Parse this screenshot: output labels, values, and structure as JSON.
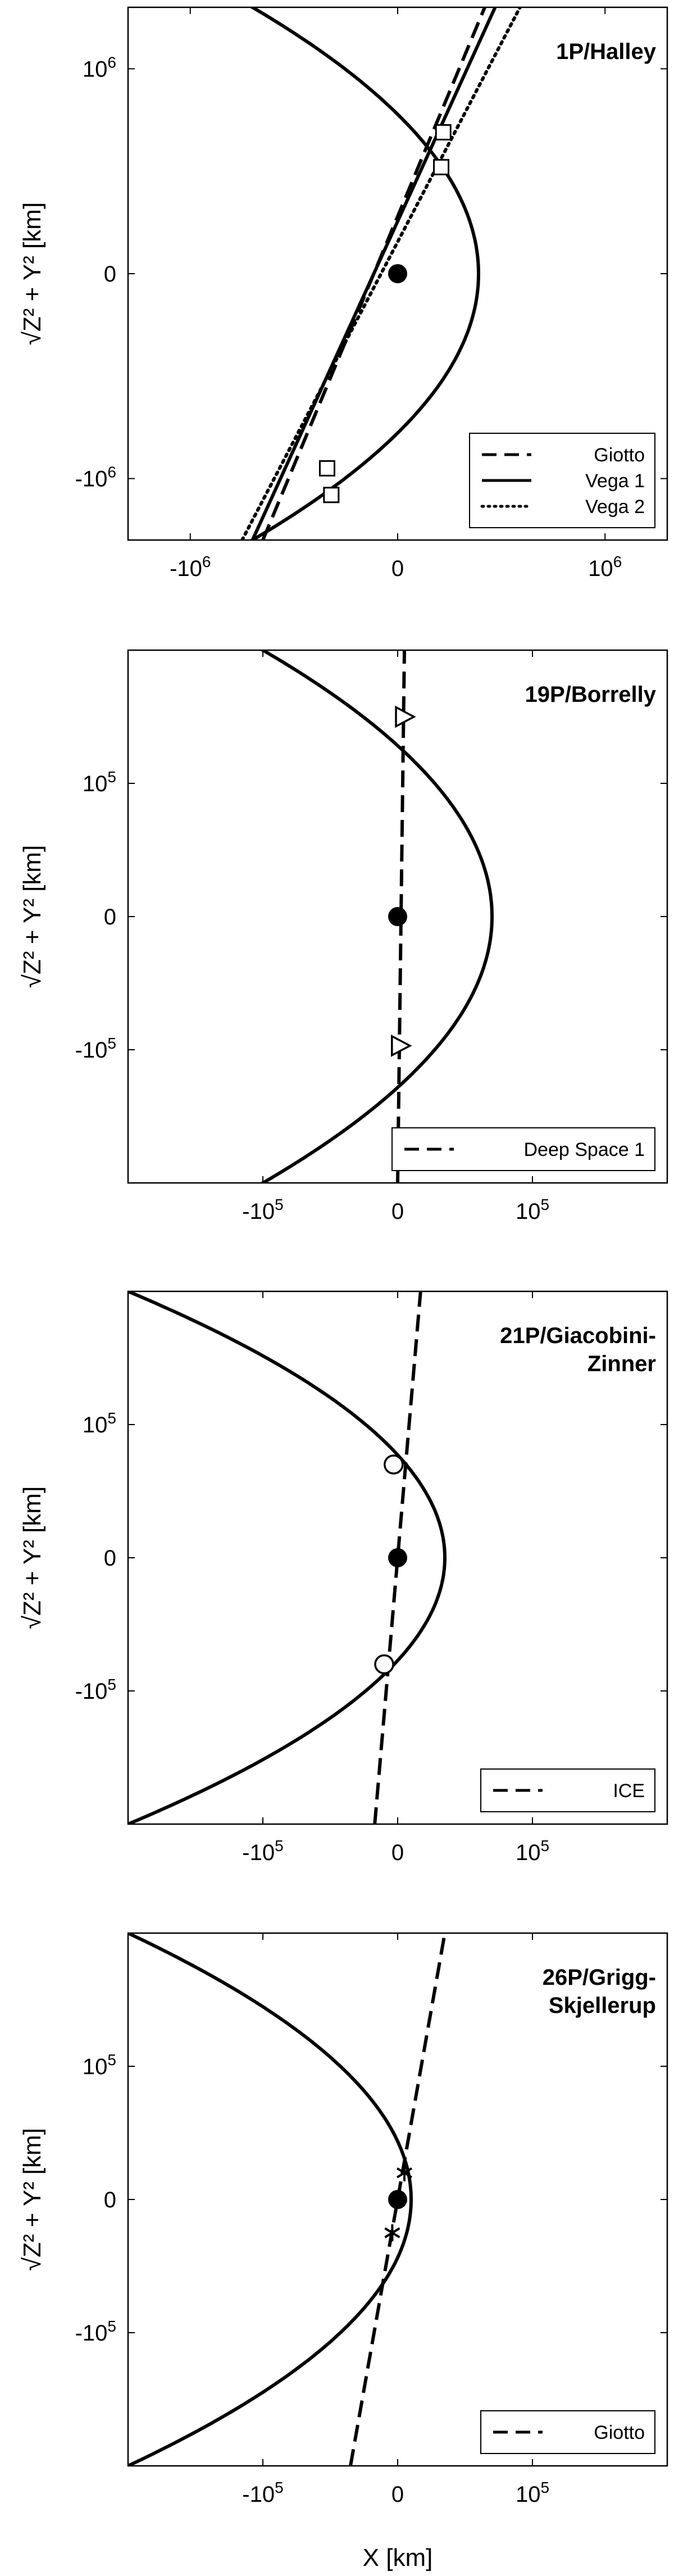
{
  "figure": {
    "xlabel": "X [km]"
  },
  "chart_data": [
    {
      "type": "line",
      "title": "1P/Halley",
      "ylabel": "√Z² + Y² [km]",
      "xlim": [
        -1300000,
        1300000
      ],
      "ylim": [
        -1300000,
        1300000
      ],
      "xticks": [
        {
          "v": -1000000,
          "label": "-10",
          "sup": "6"
        },
        {
          "v": 0,
          "label": "0",
          "sup": ""
        },
        {
          "v": 1000000,
          "label": "10",
          "sup": "6"
        }
      ],
      "yticks": [
        {
          "v": 1000000,
          "label": "10",
          "sup": "6"
        },
        {
          "v": 0,
          "label": "0",
          "sup": ""
        },
        {
          "v": -1000000,
          "label": "-10",
          "sup": "6"
        }
      ],
      "orbit": {
        "vertex": 390000,
        "x_edge": -700000
      },
      "series": [
        {
          "name": "Giotto",
          "style": "dashed",
          "points": [
            [
              -650000,
              -1300000
            ],
            [
              420000,
              1300000
            ]
          ],
          "marker": "square",
          "marker_points": [
            [
              -340000,
              -950000
            ],
            [
              220000,
              690000
            ]
          ]
        },
        {
          "name": "Vega 1",
          "style": "solid",
          "points": [
            [
              -700000,
              -1300000
            ],
            [
              470000,
              1300000
            ]
          ],
          "marker": "square",
          "marker_points": [
            [
              -320000,
              -1080000
            ],
            [
              210000,
              520000
            ]
          ]
        },
        {
          "name": "Vega 2",
          "style": "dotted",
          "points": [
            [
              -750000,
              -1300000
            ],
            [
              590000,
              1300000
            ]
          ],
          "marker": "none",
          "marker_points": []
        }
      ],
      "nucleus": [
        0,
        0
      ]
    },
    {
      "type": "line",
      "title": "19P/Borrelly",
      "ylabel": "√Z² + Y² [km]",
      "xlim": [
        -200000,
        200000
      ],
      "ylim": [
        -200000,
        200000
      ],
      "xticks": [
        {
          "v": -100000,
          "label": "-10",
          "sup": "5"
        },
        {
          "v": 0,
          "label": "0",
          "sup": ""
        },
        {
          "v": 100000,
          "label": "10",
          "sup": "5"
        }
      ],
      "yticks": [
        {
          "v": 100000,
          "label": "10",
          "sup": "5"
        },
        {
          "v": 0,
          "label": "0",
          "sup": ""
        },
        {
          "v": -100000,
          "label": "-10",
          "sup": "5"
        }
      ],
      "orbit": {
        "vertex": 70000,
        "x_edge": -100000
      },
      "series": [
        {
          "name": "Deep Space 1",
          "style": "dashed",
          "points": [
            [
              0,
              -200000
            ],
            [
              5000,
              200000
            ]
          ],
          "marker": "triangle",
          "marker_points": [
            [
              5000,
              150000
            ],
            [
              2000,
              -97000
            ]
          ]
        }
      ],
      "nucleus": [
        0,
        0
      ]
    },
    {
      "type": "line",
      "title": "21P/Giacobini-Zinner",
      "title_lines": [
        "21P/Giacobini-",
        "Zinner"
      ],
      "ylabel": "√Z² + Y² [km]",
      "xlim": [
        -200000,
        200000
      ],
      "ylim": [
        -200000,
        200000
      ],
      "xticks": [
        {
          "v": -100000,
          "label": "-10",
          "sup": "5"
        },
        {
          "v": 0,
          "label": "0",
          "sup": ""
        },
        {
          "v": 100000,
          "label": "10",
          "sup": "5"
        }
      ],
      "yticks": [
        {
          "v": 100000,
          "label": "10",
          "sup": "5"
        },
        {
          "v": 0,
          "label": "0",
          "sup": ""
        },
        {
          "v": -100000,
          "label": "-10",
          "sup": "5"
        }
      ],
      "orbit": {
        "vertex": 35000,
        "x_edge": -200000
      },
      "series": [
        {
          "name": "ICE",
          "style": "dashed",
          "points": [
            [
              -17000,
              -200000
            ],
            [
              17000,
              200000
            ]
          ],
          "marker": "circle",
          "marker_points": [
            [
              -3000,
              70000
            ],
            [
              -10000,
              -80000
            ]
          ]
        }
      ],
      "nucleus": [
        0,
        0
      ]
    },
    {
      "type": "line",
      "title": "26P/Grigg-Skjellerup",
      "title_lines": [
        "26P/Grigg-",
        "Skjellerup"
      ],
      "ylabel": "√Z² + Y² [km]",
      "xlabel": "X [km]",
      "xlim": [
        -200000,
        200000
      ],
      "ylim": [
        -200000,
        200000
      ],
      "xticks": [
        {
          "v": -100000,
          "label": "-10",
          "sup": "5"
        },
        {
          "v": 0,
          "label": "0",
          "sup": ""
        },
        {
          "v": 100000,
          "label": "10",
          "sup": "5"
        }
      ],
      "yticks": [
        {
          "v": 100000,
          "label": "10",
          "sup": "5"
        },
        {
          "v": 0,
          "label": "0",
          "sup": ""
        },
        {
          "v": -100000,
          "label": "-10",
          "sup": "5"
        }
      ],
      "orbit": {
        "vertex": 10000,
        "x_edge": -200000
      },
      "series": [
        {
          "name": "Giotto",
          "style": "dashed",
          "points": [
            [
              -35000,
              -200000
            ],
            [
              35000,
              200000
            ]
          ],
          "marker": "asterisk",
          "marker_points": [
            [
              5000,
              20000
            ],
            [
              -4000,
              -25000
            ]
          ]
        }
      ],
      "nucleus": [
        0,
        0
      ]
    }
  ]
}
